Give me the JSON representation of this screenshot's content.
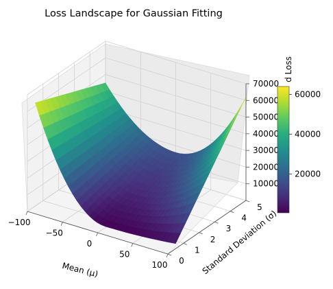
{
  "chart_data": {
    "type": "surface",
    "title": "Loss Landscape for Gaussian Fitting",
    "xlabel": "Mean (μ)",
    "ylabel": "Standard Deviation (σ)",
    "zlabel": "",
    "colorbar_label": "d Loss",
    "colormap": "viridis",
    "grid": true,
    "xlim": [
      -100,
      100
    ],
    "ylim": [
      0,
      5
    ],
    "zlim": [
      0,
      70000
    ],
    "color_range": [
      500,
      64000
    ],
    "x_ticks": [
      "−100",
      "−50",
      "0",
      "50",
      "100"
    ],
    "y_ticks": [
      "0",
      "1",
      "2",
      "3",
      "4",
      "5"
    ],
    "z_ticks": [
      "10000",
      "20000",
      "30000",
      "40000",
      "50000",
      "60000",
      "70000"
    ],
    "colorbar_ticks": [
      "20000",
      "40000",
      "60000"
    ],
    "surface_samples": [
      {
        "mu": -100,
        "sigma": 0.5,
        "loss": 62000
      },
      {
        "mu": -100,
        "sigma": 5,
        "loss": 45000
      },
      {
        "mu": 0,
        "sigma": 0.5,
        "loss": 500
      },
      {
        "mu": 0,
        "sigma": 5,
        "loss": 16000
      },
      {
        "mu": 100,
        "sigma": 0.5,
        "loss": 3000
      },
      {
        "mu": 100,
        "sigma": 5,
        "loss": 62000
      }
    ]
  }
}
